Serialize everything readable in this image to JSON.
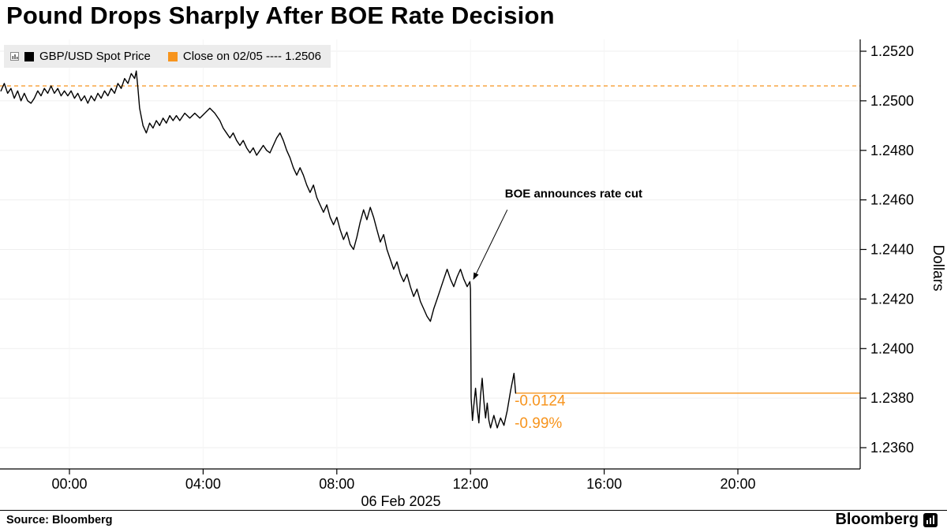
{
  "title": "Pound Drops Sharply After BOE Rate Decision",
  "legend": {
    "series_label": "GBP/USD Spot Price",
    "series_color": "#000000",
    "close_label": "Close on 02/05 ---- 1.2506",
    "close_color": "#f7941d"
  },
  "footer": {
    "source": "Source:  Bloomberg",
    "brand": "Bloomberg"
  },
  "chart_data": {
    "type": "line",
    "title": "Pound Drops Sharply After BOE Rate Decision",
    "date_label": "06 Feb 2025",
    "ylabel": "Dollars",
    "x_unit": "hours on 06 Feb 2025 (negative = late 05 Feb)",
    "xlim": [
      -2.08,
      23.66
    ],
    "ylim": [
      1.2352,
      1.2525
    ],
    "grid": true,
    "legend_position": "top-left",
    "x_ticks": [
      {
        "t": 0,
        "label": "00:00"
      },
      {
        "t": 4,
        "label": "04:00"
      },
      {
        "t": 8,
        "label": "08:00"
      },
      {
        "t": 12,
        "label": "12:00"
      },
      {
        "t": 16,
        "label": "16:00"
      },
      {
        "t": 20,
        "label": "20:00"
      }
    ],
    "y_ticks": [
      {
        "v": 1.252,
        "label": "1.2520"
      },
      {
        "v": 1.25,
        "label": "1.2500"
      },
      {
        "v": 1.248,
        "label": "1.2480"
      },
      {
        "v": 1.246,
        "label": "1.2460"
      },
      {
        "v": 1.244,
        "label": "1.2440"
      },
      {
        "v": 1.242,
        "label": "1.2420"
      },
      {
        "v": 1.24,
        "label": "1.2400"
      },
      {
        "v": 1.238,
        "label": "1.2380"
      },
      {
        "v": 1.236,
        "label": "1.2360"
      }
    ],
    "close_line": {
      "label": "Close on 02/05",
      "value": 1.2506,
      "color": "#f7941d",
      "style": "dashed"
    },
    "last_price_line": {
      "value": 1.2382,
      "color": "#f7941d",
      "style": "solid",
      "start_t": 13.35
    },
    "change_labels": [
      {
        "text": "-0.0124",
        "t": 13.32,
        "price": 1.2377
      },
      {
        "text": "-0.99%",
        "t": 13.32,
        "price": 1.2368
      }
    ],
    "annotation": {
      "text": "BOE announces rate cut",
      "text_xy": [
        13.03,
        1.2461
      ],
      "arrow_start": [
        13.1,
        1.2456
      ],
      "arrow_end": [
        12.09,
        1.2428
      ]
    },
    "series": [
      {
        "name": "GBP/USD Spot Price",
        "color": "#000000",
        "points": [
          [
            -2.05,
            1.2504
          ],
          [
            -1.95,
            1.2507
          ],
          [
            -1.85,
            1.2503
          ],
          [
            -1.75,
            1.2505
          ],
          [
            -1.65,
            1.2501
          ],
          [
            -1.55,
            1.2504
          ],
          [
            -1.45,
            1.25
          ],
          [
            -1.35,
            1.2503
          ],
          [
            -1.25,
            1.25
          ],
          [
            -1.15,
            1.2499
          ],
          [
            -1.05,
            1.2501
          ],
          [
            -0.95,
            1.2504
          ],
          [
            -0.85,
            1.2502
          ],
          [
            -0.75,
            1.2505
          ],
          [
            -0.65,
            1.2503
          ],
          [
            -0.55,
            1.2506
          ],
          [
            -0.45,
            1.2503
          ],
          [
            -0.35,
            1.2505
          ],
          [
            -0.25,
            1.2502
          ],
          [
            -0.15,
            1.2504
          ],
          [
            -0.05,
            1.2502
          ],
          [
            0.05,
            1.2504
          ],
          [
            0.15,
            1.2501
          ],
          [
            0.25,
            1.2503
          ],
          [
            0.35,
            1.25
          ],
          [
            0.45,
            1.2502
          ],
          [
            0.55,
            1.2499
          ],
          [
            0.65,
            1.2502
          ],
          [
            0.75,
            1.25
          ],
          [
            0.85,
            1.2503
          ],
          [
            0.95,
            1.2501
          ],
          [
            1.05,
            1.2504
          ],
          [
            1.15,
            1.2502
          ],
          [
            1.25,
            1.2505
          ],
          [
            1.35,
            1.2503
          ],
          [
            1.45,
            1.2507
          ],
          [
            1.55,
            1.2505
          ],
          [
            1.65,
            1.2509
          ],
          [
            1.75,
            1.2507
          ],
          [
            1.85,
            1.2511
          ],
          [
            1.95,
            1.2509
          ],
          [
            2.0,
            1.2512
          ],
          [
            2.05,
            1.2505
          ],
          [
            2.1,
            1.2497
          ],
          [
            2.2,
            1.249
          ],
          [
            2.3,
            1.2487
          ],
          [
            2.4,
            1.2491
          ],
          [
            2.5,
            1.2489
          ],
          [
            2.6,
            1.2492
          ],
          [
            2.7,
            1.249
          ],
          [
            2.8,
            1.2493
          ],
          [
            2.9,
            1.2491
          ],
          [
            3.0,
            1.2494
          ],
          [
            3.1,
            1.2492
          ],
          [
            3.2,
            1.2494
          ],
          [
            3.3,
            1.2492
          ],
          [
            3.45,
            1.2495
          ],
          [
            3.6,
            1.2493
          ],
          [
            3.75,
            1.2495
          ],
          [
            3.9,
            1.2493
          ],
          [
            4.05,
            1.2495
          ],
          [
            4.2,
            1.2497
          ],
          [
            4.35,
            1.2495
          ],
          [
            4.5,
            1.2492
          ],
          [
            4.6,
            1.2489
          ],
          [
            4.7,
            1.2487
          ],
          [
            4.8,
            1.2485
          ],
          [
            4.9,
            1.2487
          ],
          [
            5.0,
            1.2484
          ],
          [
            5.1,
            1.2482
          ],
          [
            5.2,
            1.2484
          ],
          [
            5.3,
            1.2481
          ],
          [
            5.4,
            1.2479
          ],
          [
            5.5,
            1.2481
          ],
          [
            5.6,
            1.2478
          ],
          [
            5.7,
            1.248
          ],
          [
            5.8,
            1.2482
          ],
          [
            5.9,
            1.248
          ],
          [
            6.0,
            1.2479
          ],
          [
            6.1,
            1.2482
          ],
          [
            6.2,
            1.2485
          ],
          [
            6.3,
            1.2487
          ],
          [
            6.4,
            1.2484
          ],
          [
            6.5,
            1.248
          ],
          [
            6.6,
            1.2477
          ],
          [
            6.7,
            1.2473
          ],
          [
            6.8,
            1.247
          ],
          [
            6.9,
            1.2473
          ],
          [
            7.0,
            1.247
          ],
          [
            7.1,
            1.2466
          ],
          [
            7.2,
            1.2463
          ],
          [
            7.3,
            1.2466
          ],
          [
            7.4,
            1.2461
          ],
          [
            7.5,
            1.2458
          ],
          [
            7.6,
            1.2455
          ],
          [
            7.7,
            1.2458
          ],
          [
            7.8,
            1.2453
          ],
          [
            7.9,
            1.245
          ],
          [
            8.0,
            1.2453
          ],
          [
            8.1,
            1.2448
          ],
          [
            8.2,
            1.2444
          ],
          [
            8.3,
            1.2447
          ],
          [
            8.4,
            1.2442
          ],
          [
            8.5,
            1.244
          ],
          [
            8.6,
            1.2445
          ],
          [
            8.7,
            1.2451
          ],
          [
            8.8,
            1.2456
          ],
          [
            8.9,
            1.2452
          ],
          [
            9.0,
            1.2457
          ],
          [
            9.1,
            1.2453
          ],
          [
            9.2,
            1.2448
          ],
          [
            9.3,
            1.2443
          ],
          [
            9.4,
            1.2446
          ],
          [
            9.5,
            1.244
          ],
          [
            9.6,
            1.2436
          ],
          [
            9.7,
            1.2432
          ],
          [
            9.8,
            1.2435
          ],
          [
            9.9,
            1.243
          ],
          [
            10.0,
            1.2427
          ],
          [
            10.1,
            1.243
          ],
          [
            10.2,
            1.2425
          ],
          [
            10.3,
            1.2421
          ],
          [
            10.4,
            1.2424
          ],
          [
            10.5,
            1.2419
          ],
          [
            10.6,
            1.2416
          ],
          [
            10.7,
            1.2413
          ],
          [
            10.8,
            1.2411
          ],
          [
            10.9,
            1.2416
          ],
          [
            11.0,
            1.242
          ],
          [
            11.1,
            1.2424
          ],
          [
            11.2,
            1.2428
          ],
          [
            11.3,
            1.2432
          ],
          [
            11.4,
            1.2428
          ],
          [
            11.5,
            1.2425
          ],
          [
            11.6,
            1.2429
          ],
          [
            11.7,
            1.2432
          ],
          [
            11.8,
            1.2428
          ],
          [
            11.9,
            1.2425
          ],
          [
            11.98,
            1.2427
          ],
          [
            12.0,
            1.2424
          ],
          [
            12.02,
            1.238
          ],
          [
            12.06,
            1.2371
          ],
          [
            12.1,
            1.2377
          ],
          [
            12.15,
            1.2384
          ],
          [
            12.2,
            1.2376
          ],
          [
            12.25,
            1.237
          ],
          [
            12.3,
            1.2381
          ],
          [
            12.35,
            1.2388
          ],
          [
            12.4,
            1.2379
          ],
          [
            12.45,
            1.2372
          ],
          [
            12.5,
            1.2378
          ],
          [
            12.55,
            1.2371
          ],
          [
            12.6,
            1.2368
          ],
          [
            12.7,
            1.2373
          ],
          [
            12.8,
            1.2368
          ],
          [
            12.9,
            1.2372
          ],
          [
            13.0,
            1.2369
          ],
          [
            13.1,
            1.2375
          ],
          [
            13.2,
            1.2383
          ],
          [
            13.3,
            1.239
          ],
          [
            13.35,
            1.2382
          ]
        ]
      }
    ]
  }
}
